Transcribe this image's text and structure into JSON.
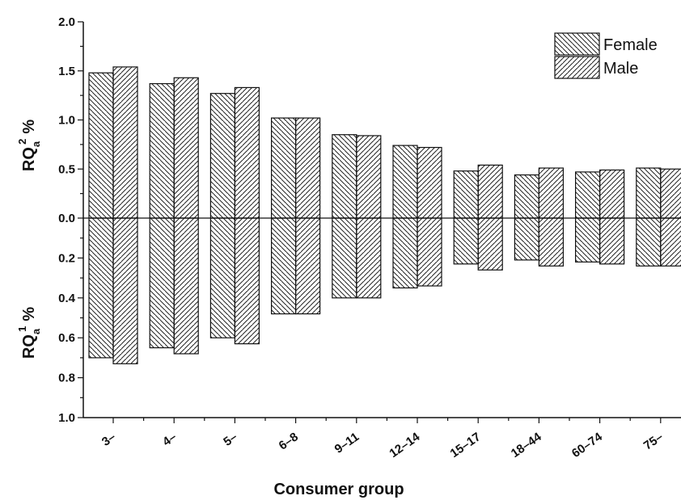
{
  "chart_data": {
    "type": "bar",
    "xlabel": "Consumer group",
    "ylabel_upper": {
      "main": "RQ",
      "sub": "a",
      "sup": "2",
      "unit": "%"
    },
    "ylabel_lower": {
      "main": "RQ",
      "sub": "a",
      "sup": "1",
      "unit": "%"
    },
    "categories": [
      "3–",
      "4–",
      "5–",
      "6–8",
      "9–11",
      "12–14",
      "15–17",
      "18–44",
      "60–74",
      "75–"
    ],
    "upper_axis": {
      "ylim": [
        0,
        2.0
      ],
      "ticks": [
        "0.0",
        "0.5",
        "1.0",
        "1.5",
        "2.0"
      ]
    },
    "lower_axis": {
      "ylim": [
        0,
        1.0
      ],
      "ticks": [
        "0.2",
        "0.4",
        "0.6",
        "0.8",
        "1.0"
      ]
    },
    "series": [
      {
        "name": "Female",
        "upper_values": [
          1.48,
          1.37,
          1.27,
          1.02,
          0.85,
          0.74,
          0.48,
          0.44,
          0.47,
          0.51
        ],
        "lower_values": [
          0.7,
          0.65,
          0.6,
          0.48,
          0.4,
          0.35,
          0.23,
          0.21,
          0.22,
          0.24
        ]
      },
      {
        "name": "Male",
        "upper_values": [
          1.54,
          1.43,
          1.33,
          1.02,
          0.84,
          0.72,
          0.54,
          0.51,
          0.49,
          0.5
        ],
        "lower_values": [
          0.73,
          0.68,
          0.63,
          0.48,
          0.4,
          0.34,
          0.26,
          0.24,
          0.23,
          0.24
        ]
      }
    ],
    "legend": {
      "position": "top-right",
      "entries": [
        "Female",
        "Male"
      ]
    },
    "grid": false,
    "zero_line": true
  }
}
